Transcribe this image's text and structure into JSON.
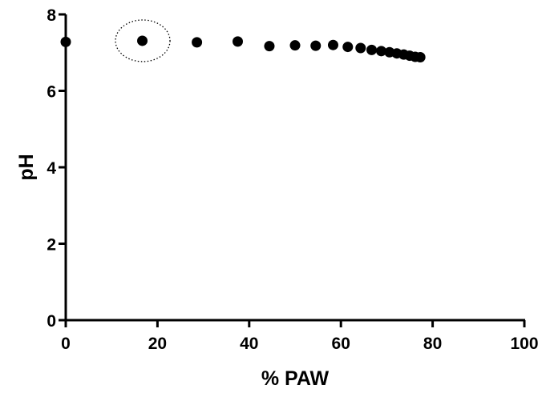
{
  "chart_data": {
    "type": "scatter",
    "title": "",
    "xlabel": "% PAW",
    "ylabel": "pH",
    "xlim": [
      0,
      100
    ],
    "ylim": [
      0,
      8
    ],
    "xticks": [
      0,
      20,
      40,
      60,
      80,
      100
    ],
    "yticks": [
      0,
      2,
      4,
      6,
      8
    ],
    "grid": false,
    "legend": "none",
    "marker_color": "#000000",
    "series": [
      {
        "x": [
          0,
          16.7,
          28.6,
          37.5,
          44.4,
          50,
          54.5,
          58.3,
          61.5,
          64.3,
          66.7,
          68.8,
          70.6,
          72.2,
          73.7,
          75,
          76.2,
          77.3
        ],
        "y": [
          7.28,
          7.31,
          7.27,
          7.29,
          7.17,
          7.19,
          7.18,
          7.2,
          7.15,
          7.12,
          7.07,
          7.04,
          7.01,
          6.98,
          6.95,
          6.92,
          6.89,
          6.88
        ]
      }
    ],
    "annotations": [
      {
        "type": "dotted-ellipse",
        "around_point_index": 1
      }
    ]
  }
}
